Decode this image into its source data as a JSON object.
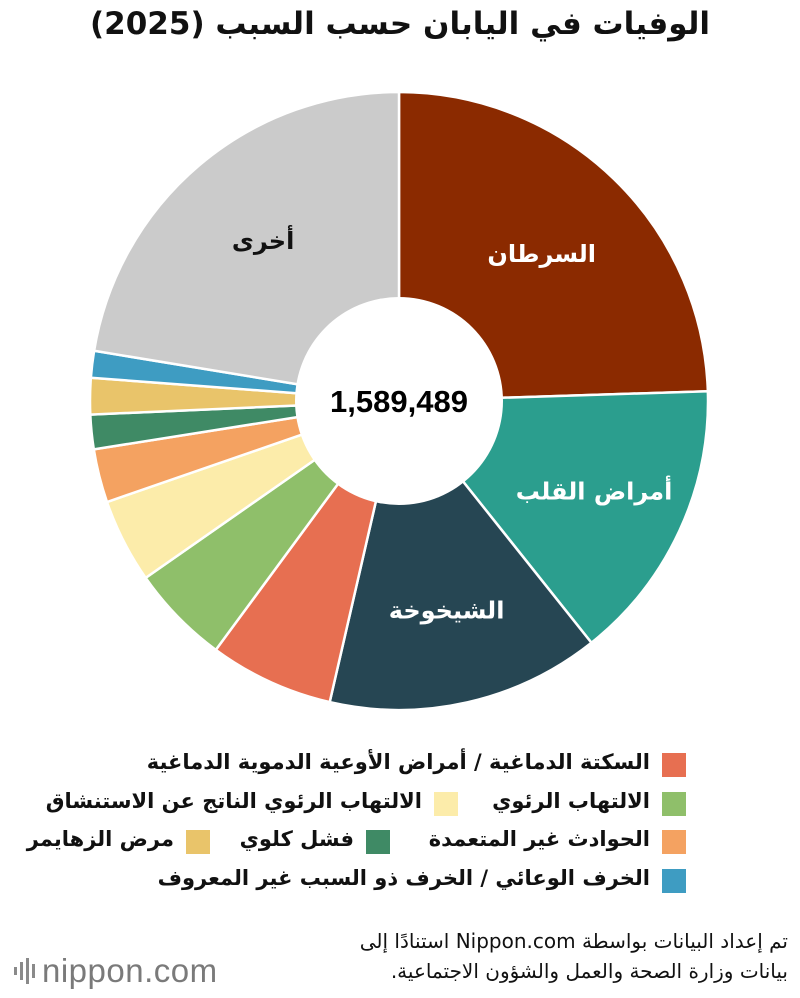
{
  "title": "الوفيات في اليابان حسب السبب (2025)",
  "chart_data": {
    "type": "pie",
    "donut": true,
    "total_label": "1,589,489",
    "slices": [
      {
        "key": "cancer",
        "label": "السرطان",
        "value": 24.5,
        "color": "#8b2a00",
        "show_label": true
      },
      {
        "key": "heart",
        "label": "أمراض القلب",
        "value": 14.8,
        "color": "#2b9e8e",
        "show_label": true
      },
      {
        "key": "senility",
        "label": "الشيخوخة",
        "value": 14.3,
        "color": "#264653",
        "show_label": true
      },
      {
        "key": "stroke",
        "label": "السكتة الدماغية / أمراض الأوعية الدموية الدماغية",
        "value": 6.5,
        "color": "#e76f51",
        "show_label": false
      },
      {
        "key": "pneumonia",
        "label": "الالتهاب الرئوي",
        "value": 5.2,
        "color": "#8fbf6a",
        "show_label": false
      },
      {
        "key": "aspiration",
        "label": "الالتهاب الرئوي الناتج عن الاستنشاق",
        "value": 4.4,
        "color": "#fcecaa",
        "show_label": false
      },
      {
        "key": "accidents",
        "label": "الحوادث غير المتعمدة",
        "value": 2.8,
        "color": "#f4a261",
        "show_label": false
      },
      {
        "key": "renal",
        "label": "فشل كلوي",
        "value": 1.8,
        "color": "#3f8a65",
        "show_label": false
      },
      {
        "key": "alzheimer",
        "label": "مرض الزهايمر",
        "value": 1.9,
        "color": "#e9c46a",
        "show_label": false
      },
      {
        "key": "dementia",
        "label": "الخرف الوعائي / الخرف ذو السبب غير المعروف",
        "value": 1.4,
        "color": "#3e9cc2",
        "show_label": false
      },
      {
        "key": "other",
        "label": "أخرى",
        "value": 22.4,
        "color": "#cbcbcb",
        "show_label": true
      }
    ]
  },
  "legend": [
    {
      "label": "السكتة الدماغية / أمراض الأوعية الدموية الدماغية",
      "color": "#e76f51"
    },
    {
      "label": "الالتهاب الرئوي",
      "color": "#8fbf6a"
    },
    {
      "label": "الالتهاب الرئوي الناتج عن الاستنشاق",
      "color": "#fcecaa"
    },
    {
      "label": "الحوادث غير المتعمدة",
      "color": "#f4a261"
    },
    {
      "label": "فشل كلوي",
      "color": "#3f8a65"
    },
    {
      "label": "مرض الزهايمر",
      "color": "#e9c46a"
    },
    {
      "label": "الخرف الوعائي / الخرف ذو السبب غير المعروف",
      "color": "#3e9cc2"
    }
  ],
  "source": {
    "line1": "تم إعداد البيانات بواسطة Nippon.com استنادًا إلى",
    "line2": "بيانات وزارة الصحة والعمل والشؤون الاجتماعية."
  },
  "logo": "nippon.com"
}
